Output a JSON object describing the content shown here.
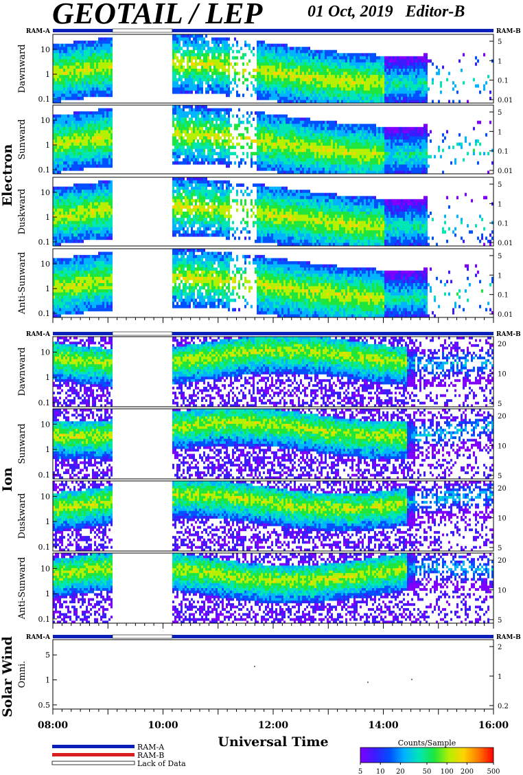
{
  "header": {
    "title": "GEOTAIL / LEP",
    "date": "01 Oct, 2019",
    "editor": "Editor-B"
  },
  "colors": {
    "ram_a": "#0a1fb8",
    "ram_b": "#d81e1e",
    "lack_of_data": "#ffffff",
    "scale": [
      "#7f00ff",
      "#3a1cff",
      "#0050ff",
      "#00b4ff",
      "#00e6b4",
      "#1ee63c",
      "#b4f000",
      "#ffd200",
      "#ff7800",
      "#ff0000"
    ]
  },
  "chart_data": {
    "type": "heatmap",
    "x_axis": {
      "label": "Universal Time",
      "ticks": [
        "08:00",
        "10:00",
        "12:00",
        "14:00",
        "16:00"
      ],
      "range": [
        "08:00",
        "16:00"
      ]
    },
    "lack_of_data_intervals": [
      [
        "09:05",
        "10:10"
      ]
    ],
    "groups": [
      {
        "species": "Electron",
        "mode_left": "RAM-A",
        "mode_right": "RAM-B",
        "panels": [
          {
            "direction": "Dawnward",
            "left_ticks": [
              "10",
              "1",
              "0.1"
            ],
            "right_ticks": [
              "5",
              "1",
              "0.1",
              "0.01"
            ]
          },
          {
            "direction": "Sunward",
            "left_ticks": [
              "10",
              "1",
              "0.1"
            ],
            "right_ticks": [
              "5",
              "1",
              "0.1",
              "0.01"
            ]
          },
          {
            "direction": "Duskward",
            "left_ticks": [
              "10",
              "1",
              "0.1"
            ],
            "right_ticks": [
              "5",
              "1",
              "0.1",
              "0.01"
            ]
          },
          {
            "direction": "Anti-Sunward",
            "left_ticks": [
              "10",
              "1",
              "0.1"
            ],
            "right_ticks": [
              "5",
              "1",
              "0.1",
              "0.01"
            ]
          }
        ]
      },
      {
        "species": "Ion",
        "mode_left": "RAM-A",
        "mode_right": "RAM-B",
        "panels": [
          {
            "direction": "Dawnward",
            "left_ticks": [
              "10",
              "1",
              "0.1"
            ],
            "right_ticks": [
              "20",
              "10",
              "5"
            ]
          },
          {
            "direction": "Sunward",
            "left_ticks": [
              "10",
              "1",
              "0.1"
            ],
            "right_ticks": [
              "20",
              "10",
              "5"
            ]
          },
          {
            "direction": "Duskward",
            "left_ticks": [
              "10",
              "1",
              "0.1"
            ],
            "right_ticks": [
              "20",
              "10",
              "5"
            ]
          },
          {
            "direction": "Anti-Sunward",
            "left_ticks": [
              "10",
              "1",
              "0.1"
            ],
            "right_ticks": [
              "20",
              "10",
              "5"
            ]
          }
        ]
      },
      {
        "species": "Solar Wind",
        "mode_left": "RAM-A",
        "mode_right": "RAM-B",
        "panels": [
          {
            "direction": "Omni.",
            "left_ticks": [
              "5",
              "1",
              "0.5"
            ],
            "right_ticks": [
              "2",
              "1",
              "0.2"
            ]
          }
        ]
      }
    ],
    "legend": {
      "ram_a": "RAM-A",
      "ram_b": "RAM-B",
      "lack": "Lack of Data"
    },
    "colorbar": {
      "title": "Counts/Sample",
      "ticks": [
        "5",
        "10",
        "20",
        "50",
        "100",
        "200",
        "500"
      ],
      "scale": "log"
    }
  }
}
